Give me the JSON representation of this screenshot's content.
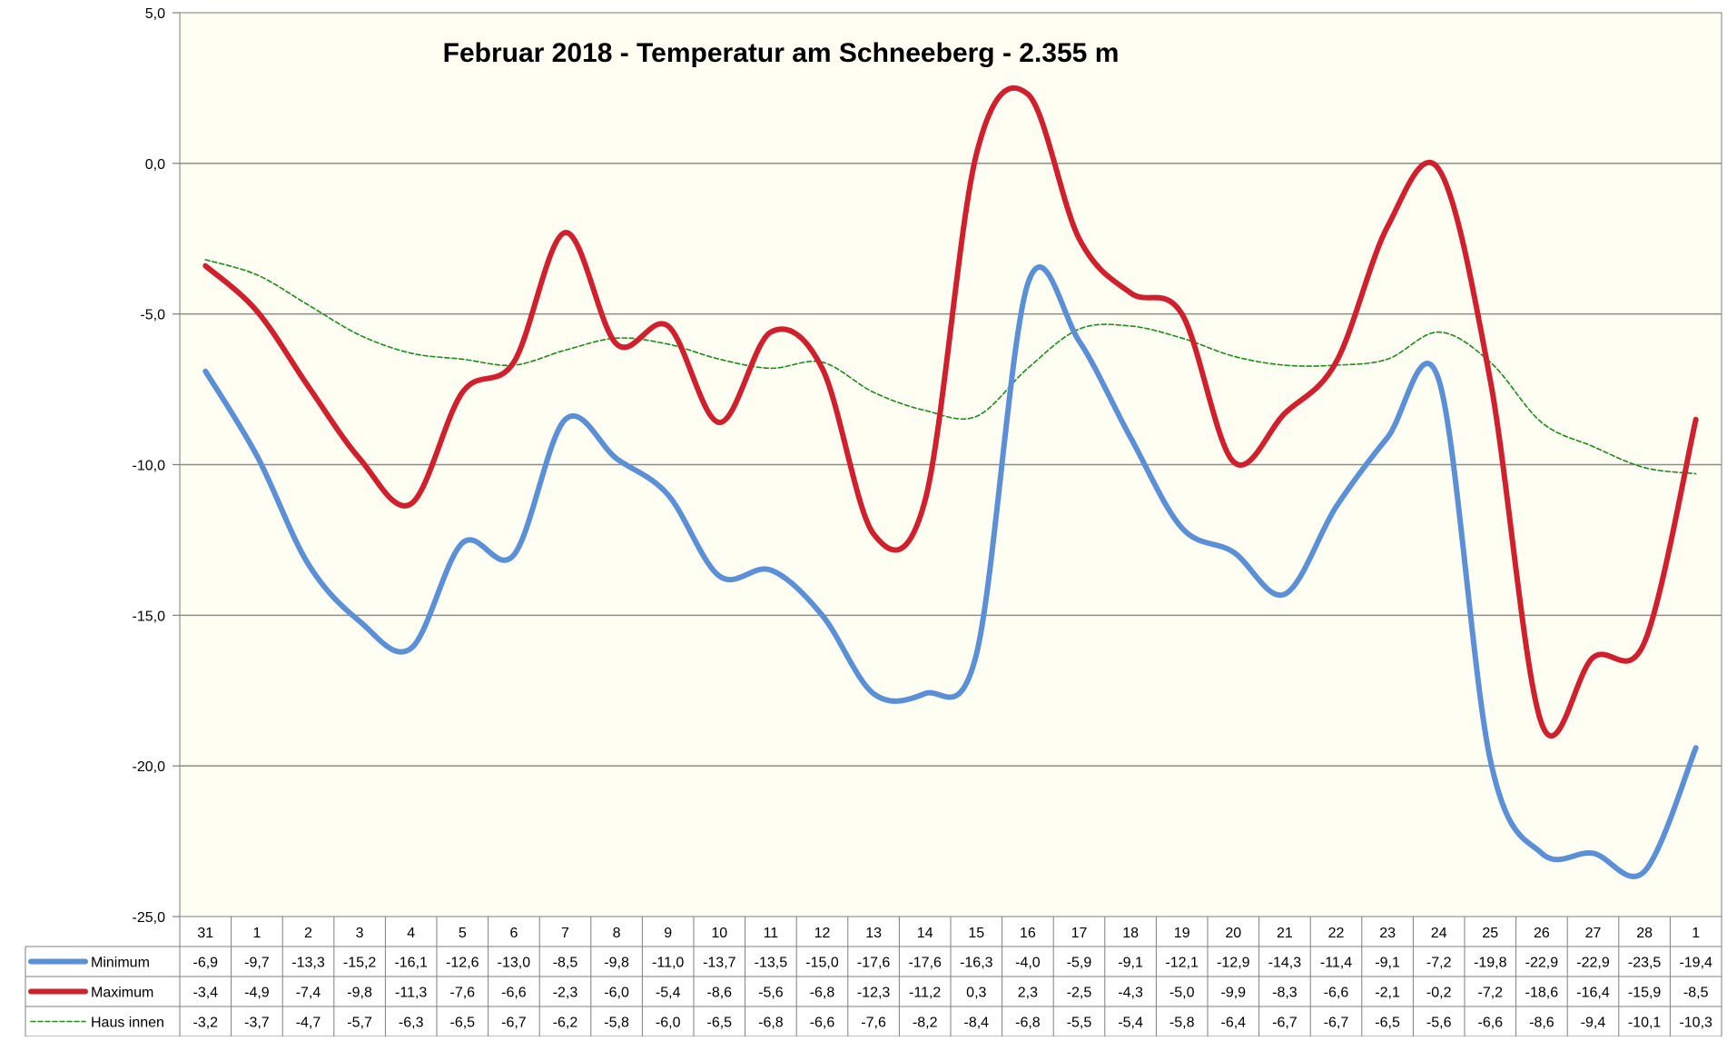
{
  "chart_data": {
    "type": "line",
    "title": "Februar 2018 - Temperatur am Schneeberg - 2.355 m",
    "categories": [
      "31",
      "1",
      "2",
      "3",
      "4",
      "5",
      "6",
      "7",
      "8",
      "9",
      "10",
      "11",
      "12",
      "13",
      "14",
      "15",
      "16",
      "17",
      "18",
      "19",
      "20",
      "21",
      "22",
      "23",
      "24",
      "25",
      "26",
      "27",
      "28",
      "1"
    ],
    "series": [
      {
        "name": "Minimum",
        "color": "#5b8fd6",
        "style": "solid-thick",
        "values": [
          -6.9,
          -9.7,
          -13.3,
          -15.2,
          -16.1,
          -12.6,
          -13.0,
          -8.5,
          -9.8,
          -11.0,
          -13.7,
          -13.5,
          -15.0,
          -17.6,
          -17.6,
          -16.3,
          -4.0,
          -5.9,
          -9.1,
          -12.1,
          -12.9,
          -14.3,
          -11.4,
          -9.1,
          -7.2,
          -19.8,
          -22.9,
          -22.9,
          -23.5,
          -19.4
        ],
        "labels": [
          "-6,9",
          "-9,7",
          "-13,3",
          "-15,2",
          "-16,1",
          "-12,6",
          "-13,0",
          "-8,5",
          "-9,8",
          "-11,0",
          "-13,7",
          "-13,5",
          "-15,0",
          "-17,6",
          "-17,6",
          "-16,3",
          "-4,0",
          "-5,9",
          "-9,1",
          "-12,1",
          "-12,9",
          "-14,3",
          "-11,4",
          "-9,1",
          "-7,2",
          "-19,8",
          "-22,9",
          "-22,9",
          "-23,5",
          "-19,4"
        ]
      },
      {
        "name": "Maximum",
        "color": "#d0202e",
        "style": "solid-thick",
        "values": [
          -3.4,
          -4.9,
          -7.4,
          -9.8,
          -11.3,
          -7.6,
          -6.6,
          -2.3,
          -6.0,
          -5.4,
          -8.6,
          -5.6,
          -6.8,
          -12.3,
          -11.2,
          0.3,
          2.3,
          -2.5,
          -4.3,
          -5.0,
          -9.9,
          -8.3,
          -6.6,
          -2.1,
          -0.2,
          -7.2,
          -18.6,
          -16.4,
          -15.9,
          -8.5
        ],
        "labels": [
          "-3,4",
          "-4,9",
          "-7,4",
          "-9,8",
          "-11,3",
          "-7,6",
          "-6,6",
          "-2,3",
          "-6,0",
          "-5,4",
          "-8,6",
          "-5,6",
          "-6,8",
          "-12,3",
          "-11,2",
          "0,3",
          "2,3",
          "-2,5",
          "-4,3",
          "-5,0",
          "-9,9",
          "-8,3",
          "-6,6",
          "-2,1",
          "-0,2",
          "-7,2",
          "-18,6",
          "-16,4",
          "-15,9",
          "-8,5"
        ]
      },
      {
        "name": "Haus innen",
        "color": "#1e8a1e",
        "style": "dashed-thin",
        "values": [
          -3.2,
          -3.7,
          -4.7,
          -5.7,
          -6.3,
          -6.5,
          -6.7,
          -6.2,
          -5.8,
          -6.0,
          -6.5,
          -6.8,
          -6.6,
          -7.6,
          -8.2,
          -8.4,
          -6.8,
          -5.5,
          -5.4,
          -5.8,
          -6.4,
          -6.7,
          -6.7,
          -6.5,
          -5.6,
          -6.6,
          -8.6,
          -9.4,
          -10.1,
          -10.3
        ],
        "labels": [
          "-3,2",
          "-3,7",
          "-4,7",
          "-5,7",
          "-6,3",
          "-6,5",
          "-6,7",
          "-6,2",
          "-5,8",
          "-6,0",
          "-6,5",
          "-6,8",
          "-6,6",
          "-7,6",
          "-8,2",
          "-8,4",
          "-6,8",
          "-5,5",
          "-5,4",
          "-5,8",
          "-6,4",
          "-6,7",
          "-6,7",
          "-6,5",
          "-5,6",
          "-6,6",
          "-8,6",
          "-9,4",
          "-10,1",
          "-10,3"
        ]
      }
    ],
    "ylim": [
      -25,
      5
    ],
    "yticks": [
      5,
      0,
      -5,
      -10,
      -15,
      -20,
      -25
    ],
    "ytick_labels": [
      "5,0",
      "0,0",
      "-5,0",
      "-10,0",
      "-15,0",
      "-20,0",
      "-25,0"
    ],
    "grid": true,
    "legend": "data table below chart"
  },
  "colors": {
    "plot_background": "#fefef2",
    "gridline": "#8c8c8c",
    "frame": "#7f7f7f"
  }
}
